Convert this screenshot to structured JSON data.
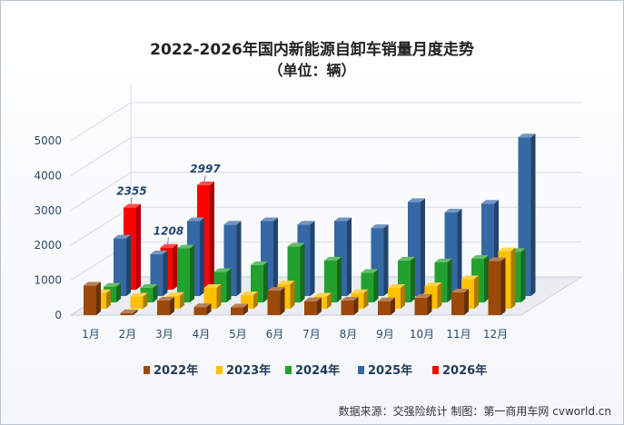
{
  "title": "2022-2026年国内新能源自卸车销量月度走势",
  "subtitle": "（单位：辆）",
  "source": "数据来源：交强险统计   制图：第一商用车网 cvworld.cn",
  "chart_data": {
    "type": "bar",
    "categories": [
      "1月",
      "2月",
      "3月",
      "4月",
      "5月",
      "6月",
      "7月",
      "8月",
      "9月",
      "10月",
      "11月",
      "12月"
    ],
    "y_ticks": [
      "0",
      "1000",
      "2000",
      "3000",
      "4000",
      "5000"
    ],
    "ylim": [
      0,
      5500
    ],
    "series": [
      {
        "name": "2022年",
        "color": "#9b4a0c",
        "values": [
          850,
          60,
          420,
          230,
          220,
          700,
          400,
          420,
          400,
          500,
          650,
          1550
        ]
      },
      {
        "name": "2023年",
        "color": "#ffc000",
        "values": [
          450,
          350,
          370,
          600,
          390,
          700,
          350,
          450,
          600,
          650,
          850,
          1650
        ]
      },
      {
        "name": "2024年",
        "color": "#22a12f",
        "values": [
          450,
          420,
          1550,
          870,
          1070,
          1600,
          1200,
          850,
          1200,
          1150,
          1250,
          1450
        ]
      },
      {
        "name": "2025年",
        "color": "#3568a5",
        "values": [
          1650,
          1200,
          2150,
          2050,
          2150,
          2050,
          2150,
          1950,
          2700,
          2400,
          2650,
          4550
        ]
      },
      {
        "name": "2026年",
        "color": "#ff0000",
        "values": [
          2355,
          1208,
          2997,
          null,
          null,
          null,
          null,
          null,
          null,
          null,
          null,
          null
        ]
      }
    ],
    "data_labels": [
      {
        "series": "2026年",
        "category": "1月",
        "text": "2355"
      },
      {
        "series": "2026年",
        "category": "2月",
        "text": "1208"
      },
      {
        "series": "2026年",
        "category": "3月",
        "text": "2997"
      }
    ]
  }
}
